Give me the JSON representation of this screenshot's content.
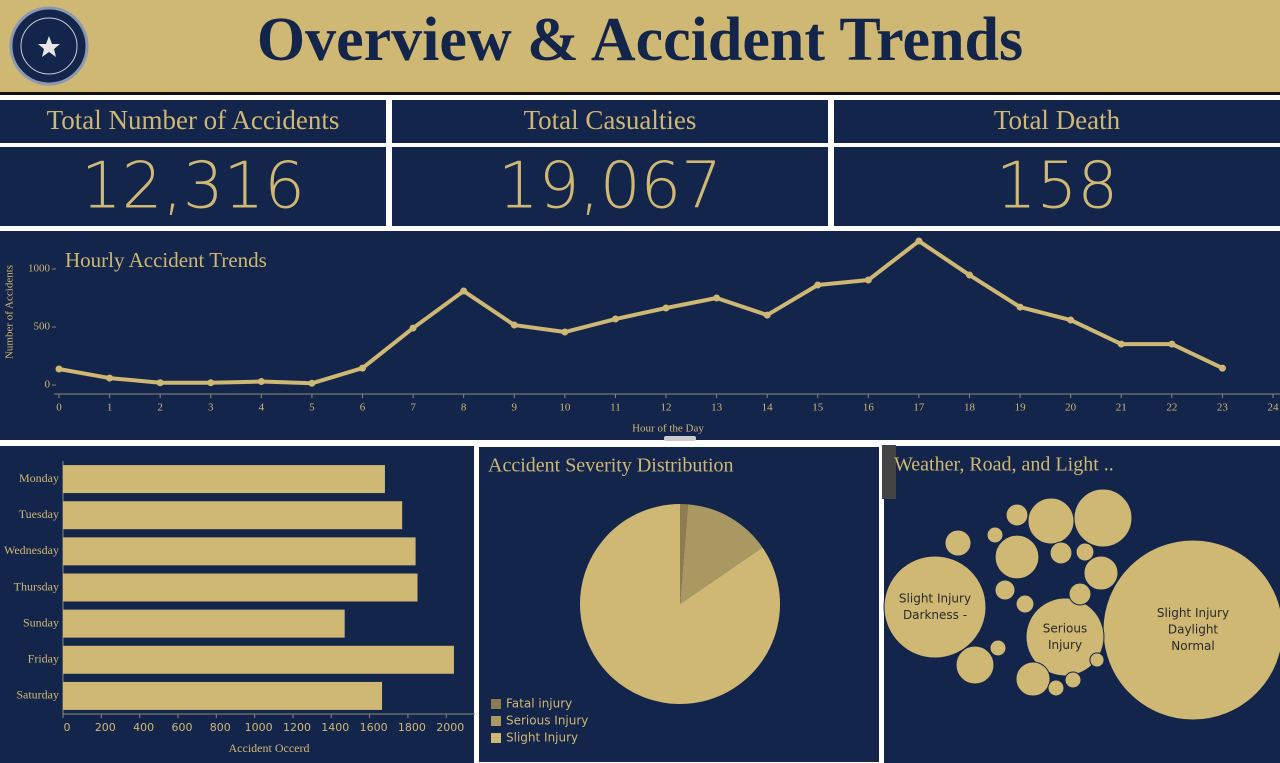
{
  "header": {
    "title": "Overview & Accident Trends"
  },
  "kpis": [
    {
      "title": "Total Number of Accidents",
      "value": "12,316"
    },
    {
      "title": "Total Casualties",
      "value": "19,067"
    },
    {
      "title": "Total Death",
      "value": "158"
    }
  ],
  "chart_data": [
    {
      "type": "line",
      "title": "Hourly Accident Trends",
      "x_label": "Hour of the Day",
      "y_label": "Number of Accidents",
      "x": [
        0,
        1,
        2,
        3,
        4,
        5,
        6,
        7,
        8,
        9,
        10,
        11,
        12,
        13,
        14,
        15,
        16,
        17,
        18,
        19,
        20,
        21,
        22,
        23
      ],
      "values": [
        138,
        60,
        20,
        20,
        30,
        15,
        146,
        491,
        810,
        517,
        457,
        569,
        664,
        750,
        603,
        862,
        905,
        1241,
        948,
        672,
        560,
        353,
        353,
        146
      ],
      "color": "#cfb774",
      "xlim": [
        0,
        24
      ],
      "xticks": [
        0,
        1,
        2,
        3,
        4,
        5,
        6,
        7,
        8,
        9,
        10,
        11,
        12,
        13,
        14,
        15,
        16,
        17,
        18,
        19,
        20,
        21,
        22,
        23,
        24
      ],
      "ylim": [
        -60,
        1250
      ],
      "yticks": [
        0,
        500,
        1000
      ]
    },
    {
      "type": "bar",
      "orientation": "horizontal",
      "x_label": "Accident Occerd",
      "categories": [
        "Monday",
        "Tuesday",
        "Wednesday",
        "Thursday",
        "Sunday",
        "Friday",
        "Saturday"
      ],
      "values": [
        1680,
        1770,
        1840,
        1850,
        1470,
        2040,
        1665
      ],
      "color": "#cfb774",
      "xlim": [
        0,
        2150
      ],
      "xticks": [
        0,
        200,
        400,
        600,
        800,
        1000,
        1200,
        1400,
        1600,
        1800,
        2000
      ]
    },
    {
      "type": "pie",
      "title": "Accident Severity Distribution",
      "categories": [
        "Fatal injury",
        "Serious Injury",
        "Slight Injury"
      ],
      "values": [
        158,
        1743,
        10415
      ],
      "colors": [
        "#8c7c50",
        "#aa9862",
        "#cfb774"
      ]
    },
    {
      "type": "bubble",
      "title": "Weather, Road, and Light ..",
      "color": "#cfb774",
      "bubbles": [
        {
          "label": [
            "Slight Injury",
            "Daylight",
            "Normal"
          ],
          "value": 4050
        },
        {
          "label": [
            "Slight Injury",
            "Darkness -"
          ],
          "value": 1300
        },
        {
          "label": [
            "Serious",
            "Injury"
          ],
          "value": 760
        },
        {
          "label": null,
          "value": 420
        },
        {
          "label": null,
          "value": 265
        },
        {
          "label": null,
          "value": 240
        },
        {
          "label": null,
          "value": 145
        },
        {
          "label": null,
          "value": 60
        },
        {
          "label": null,
          "value": 180
        },
        {
          "label": null,
          "value": 145
        },
        {
          "label": null,
          "value": 60
        },
        {
          "label": null,
          "value": 85
        },
        {
          "label": null,
          "value": 60
        },
        {
          "label": null,
          "value": 40
        },
        {
          "label": null,
          "value": 50
        },
        {
          "label": null,
          "value": 40
        },
        {
          "label": null,
          "value": 32
        },
        {
          "label": null,
          "value": 32
        },
        {
          "label": null,
          "value": 25
        },
        {
          "label": null,
          "value": 32
        },
        {
          "label": null,
          "value": 32
        }
      ]
    }
  ]
}
